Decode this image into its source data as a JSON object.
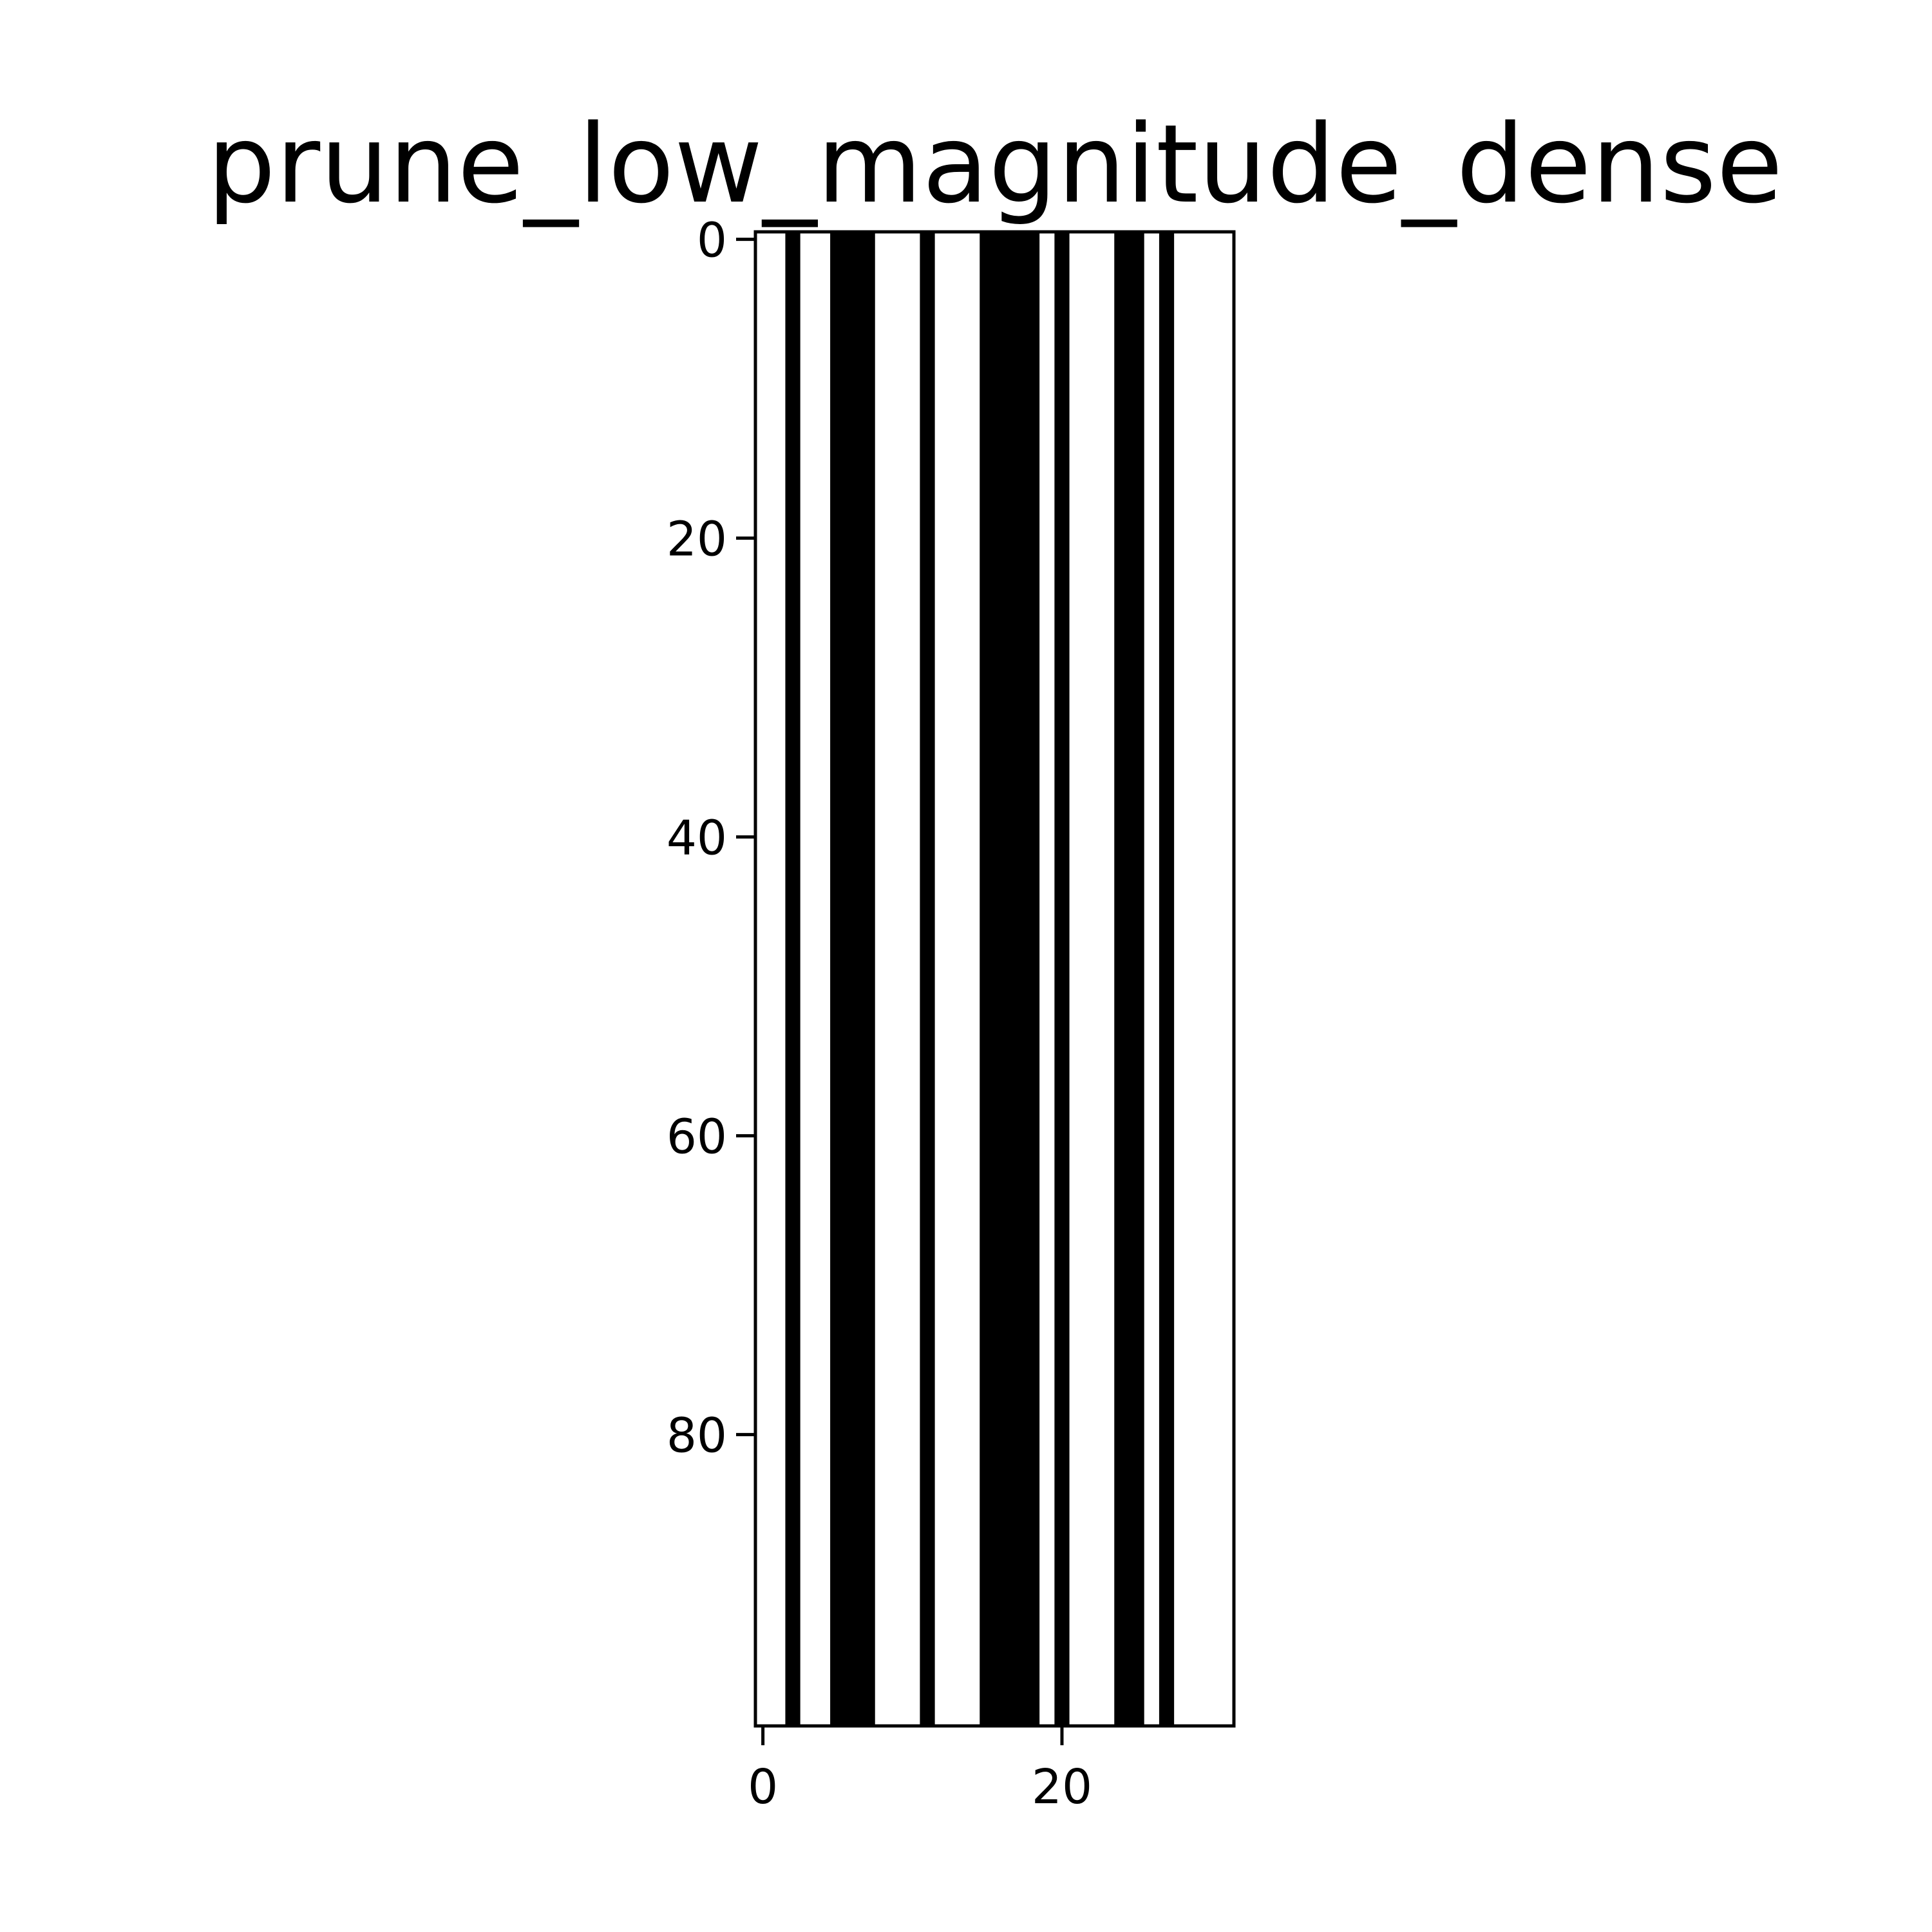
{
  "chart_data": {
    "type": "heatmap",
    "title": "prune_low_magnitude_dense",
    "xlabel": "",
    "ylabel": "",
    "n_columns": 32,
    "n_rows": 100,
    "xlim": [
      -0.5,
      31.5
    ],
    "ylim": [
      99.5,
      -0.5
    ],
    "x_ticks": [
      0,
      20
    ],
    "y_ticks": [
      0,
      20,
      40,
      60,
      80
    ],
    "colormap": "gray",
    "grid": false,
    "column_values": [
      1,
      1,
      0,
      1,
      1,
      0,
      0,
      0,
      1,
      1,
      1,
      0,
      1,
      1,
      1,
      0,
      0,
      0,
      0,
      1,
      0,
      1,
      1,
      1,
      0,
      0,
      1,
      0,
      1,
      1,
      1,
      1
    ],
    "value_colors": {
      "1": "#ffffff",
      "0": "#000000"
    }
  }
}
